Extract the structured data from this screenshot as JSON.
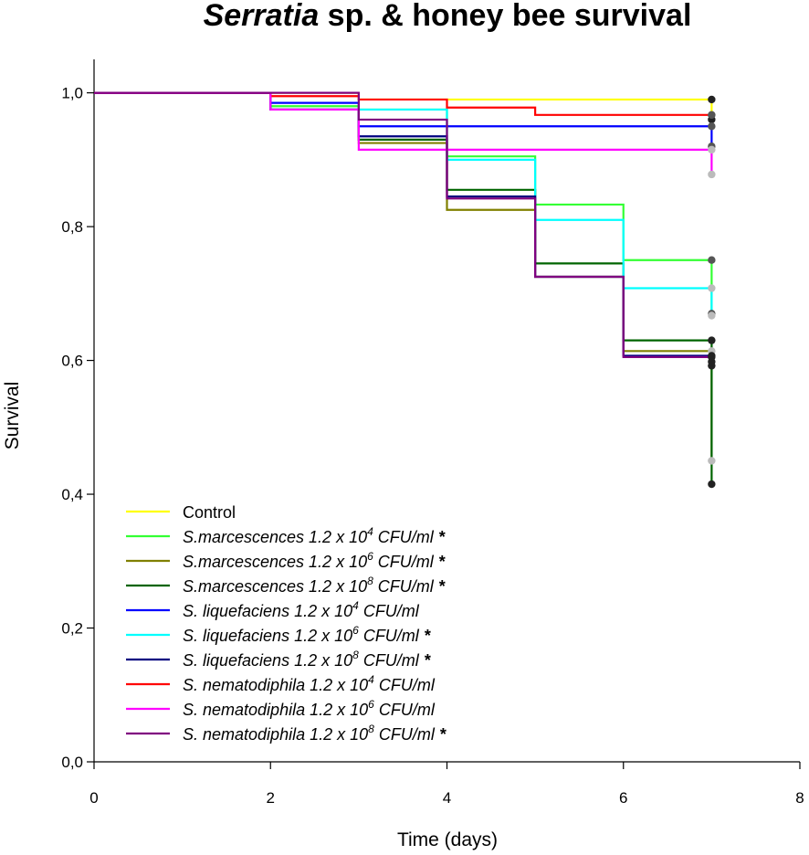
{
  "chart_data": {
    "type": "line",
    "step": true,
    "title_italic": "Serratia",
    "title_rest": " sp. & honey bee survival",
    "xlabel": "Time (days)",
    "ylabel": "Survival",
    "xlim": [
      0,
      8
    ],
    "ylim": [
      0,
      1.05
    ],
    "xticks": [
      0,
      2,
      4,
      6,
      8
    ],
    "xtick_labels": [
      "0",
      "2",
      "4",
      "6",
      "8"
    ],
    "yticks": [
      0,
      0.2,
      0.4,
      0.6,
      0.8,
      1.0
    ],
    "ytick_labels": [
      "0,0",
      "0,2",
      "0,4",
      "0,6",
      "0,8",
      "1,0"
    ],
    "grid": false,
    "legend_position": "bottom-left",
    "series": [
      {
        "name": "Control",
        "legend_italic": "",
        "legend_plain": "Control",
        "exponent": "",
        "legend_tail": "",
        "significant": "",
        "color": "#ffff00",
        "x": [
          0,
          2,
          3,
          4,
          7
        ],
        "y": [
          1.0,
          1.0,
          0.99,
          0.99,
          0.99
        ],
        "censor": [
          0.96
        ]
      },
      {
        "name": "S.marcescences 1.2 x 10^4 CFU/ml *",
        "legend_italic": "S.marcescences 1.2 x 10",
        "legend_plain": "",
        "exponent": "4",
        "legend_tail": " CFU/ml",
        "significant": "*",
        "color": "#33ff33",
        "x": [
          0,
          2,
          3,
          4,
          5,
          6,
          7
        ],
        "y": [
          1.0,
          0.98,
          0.975,
          0.905,
          0.833,
          0.75,
          0.75
        ],
        "censor": [
          0.67
        ]
      },
      {
        "name": "S.marcescences 1.2 x 10^6 CFU/ml *",
        "legend_italic": "S.marcescences 1.2 x 10",
        "legend_plain": "",
        "exponent": "6",
        "legend_tail": " CFU/ml",
        "significant": "*",
        "color": "#808000",
        "x": [
          0,
          2,
          3,
          4,
          5,
          6,
          7
        ],
        "y": [
          1.0,
          0.975,
          0.925,
          0.825,
          0.725,
          0.614,
          0.614
        ],
        "censor": [
          0.45
        ]
      },
      {
        "name": "S.marcescences 1.2 x 10^8 CFU/ml *",
        "legend_italic": "S.marcescences 1.2 x 10",
        "legend_plain": "",
        "exponent": "8",
        "legend_tail": " CFU/ml",
        "significant": "*",
        "color": "#006400",
        "x": [
          0,
          2,
          3,
          4,
          5,
          6,
          7
        ],
        "y": [
          1.0,
          0.975,
          0.93,
          0.855,
          0.745,
          0.63,
          0.63
        ],
        "censor": [
          0.415
        ]
      },
      {
        "name": "S. liquefaciens 1.2 x 10^4 CFU/ml",
        "legend_italic": "S. liquefaciens 1.2 x 10",
        "legend_plain": "",
        "exponent": "4",
        "legend_tail": " CFU/ml",
        "significant": "",
        "color": "#0000ff",
        "x": [
          0,
          2,
          3,
          4,
          7
        ],
        "y": [
          1.0,
          0.985,
          0.95,
          0.95,
          0.95
        ],
        "censor": [
          0.92
        ]
      },
      {
        "name": "S. liquefaciens 1.2 x 10^6 CFU/ml *",
        "legend_italic": "S. liquefaciens 1.2 x 10",
        "legend_plain": "",
        "exponent": "6",
        "legend_tail": " CFU/ml",
        "significant": "*",
        "color": "#00ffff",
        "x": [
          0,
          2,
          3,
          4,
          5,
          6,
          7
        ],
        "y": [
          1.0,
          0.975,
          0.975,
          0.9,
          0.81,
          0.708,
          0.708
        ],
        "censor": [
          0.667
        ]
      },
      {
        "name": "S. liquefaciens 1.2 x 10^8 CFU/ml *",
        "legend_italic": "S. liquefaciens 1.2 x 10",
        "legend_plain": "",
        "exponent": "8",
        "legend_tail": " CFU/ml",
        "significant": "*",
        "color": "#000080",
        "x": [
          0,
          2,
          3,
          4,
          5,
          6,
          7
        ],
        "y": [
          1.0,
          0.975,
          0.935,
          0.845,
          0.725,
          0.607,
          0.607
        ],
        "censor": [
          0.598
        ]
      },
      {
        "name": "S. nematodiphila 1.2 x 10^4 CFU/ml",
        "legend_italic": "S. nematodiphila 1.2 x 10",
        "legend_plain": "",
        "exponent": "4",
        "legend_tail": " CFU/ml",
        "significant": "",
        "color": "#ff0000",
        "x": [
          0,
          2,
          3,
          4,
          5,
          7
        ],
        "y": [
          1.0,
          0.995,
          0.99,
          0.978,
          0.967,
          0.967
        ],
        "censor": [
          0.967
        ]
      },
      {
        "name": "S. nematodiphila 1.2 x 10^6 CFU/ml",
        "legend_italic": "S. nematodiphila 1.2 x 10",
        "legend_plain": "",
        "exponent": "6",
        "legend_tail": " CFU/ml",
        "significant": "",
        "color": "#ff00ff",
        "x": [
          0,
          2,
          3,
          4,
          7
        ],
        "y": [
          1.0,
          0.975,
          0.915,
          0.915,
          0.915
        ],
        "censor": [
          0.878
        ]
      },
      {
        "name": "S. nematodiphila 1.2 x 10^8 CFU/ml *",
        "legend_italic": "S. nematodiphila 1.2 x 10",
        "legend_plain": "",
        "exponent": "8",
        "legend_tail": " CFU/ml",
        "significant": "*",
        "color": "#800080",
        "x": [
          0,
          2,
          3,
          4,
          5,
          6,
          7
        ],
        "y": [
          1.0,
          1.0,
          0.96,
          0.842,
          0.725,
          0.605,
          0.605
        ],
        "censor": [
          0.592
        ]
      }
    ]
  }
}
